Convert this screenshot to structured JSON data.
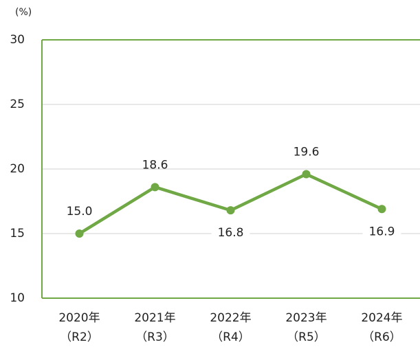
{
  "chart_data": {
    "type": "line",
    "y_label": "(%)",
    "categories": [
      [
        "2020年",
        "（R2）"
      ],
      [
        "2021年",
        "（R3）"
      ],
      [
        "2022年",
        "（R4）"
      ],
      [
        "2023年",
        "（R5）"
      ],
      [
        "2024年",
        "（R6）"
      ]
    ],
    "values": [
      15.0,
      18.6,
      16.8,
      19.6,
      16.9
    ],
    "value_labels": [
      "15.0",
      "18.6",
      "16.8",
      "19.6",
      "16.9"
    ],
    "label_position": [
      "above",
      "above",
      "below",
      "above",
      "below"
    ],
    "color": "#6fa844",
    "ylim": [
      10,
      30
    ],
    "yticks": [
      10,
      15,
      20,
      25,
      30
    ],
    "grid": true
  }
}
